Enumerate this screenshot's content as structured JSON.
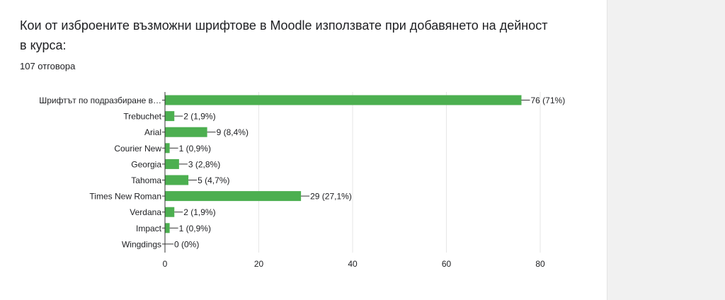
{
  "question": {
    "title": "Кои от изброените възможни шрифтове в Moodle използвате при добавянето на дейност в курса:",
    "response_count": "107 отговора"
  },
  "colors": {
    "bar": "#4caf50",
    "text": "#202124",
    "grid": "#e6e6e6",
    "axis": "#333333"
  },
  "chart_data": {
    "type": "bar",
    "orientation": "horizontal",
    "categories": [
      "Шрифтът по подразбиране в…",
      "Trebuchet",
      "Arial",
      "Courier New",
      "Georgia",
      "Tahoma",
      "Times New Roman",
      "Verdana",
      "Impact",
      "Wingdings"
    ],
    "values": [
      76,
      2,
      9,
      1,
      3,
      5,
      29,
      2,
      1,
      0
    ],
    "data_labels": [
      "76 (71%)",
      "2 (1,9%)",
      "9 (8,4%)",
      "1 (0,9%)",
      "3 (2,8%)",
      "5 (4,7%)",
      "29 (27,1%)",
      "2 (1,9%)",
      "1 (0,9%)",
      "0 (0%)"
    ],
    "x_ticks": [
      0,
      20,
      40,
      60,
      80
    ],
    "xlim": [
      0,
      80
    ],
    "grid": true,
    "legend": "none"
  }
}
